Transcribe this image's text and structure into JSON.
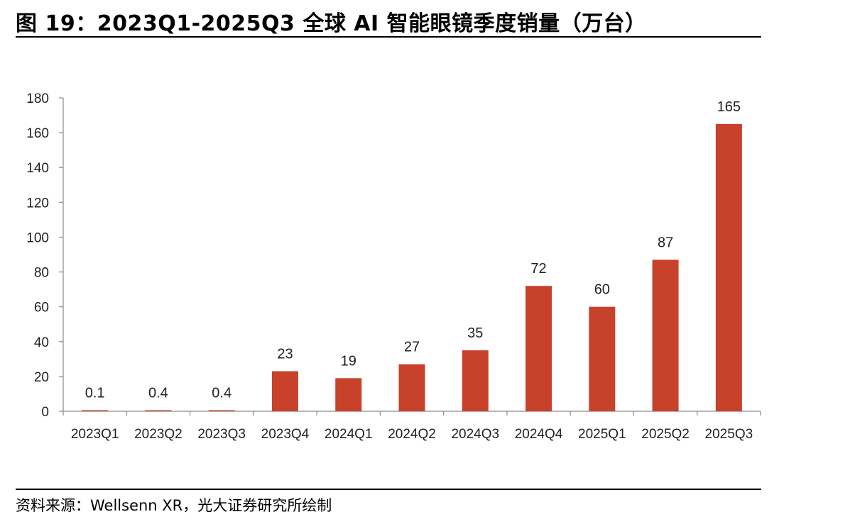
{
  "figure": {
    "title": "图 19：2023Q1-2025Q3 全球 AI 智能眼镜季度销量（万台）",
    "source": "资料来源：Wellsenn XR，光大证券研究所绘制"
  },
  "chart_data": {
    "type": "bar",
    "categories": [
      "2023Q1",
      "2023Q2",
      "2023Q3",
      "2023Q4",
      "2024Q1",
      "2024Q2",
      "2024Q3",
      "2024Q4",
      "2025Q1",
      "2025Q2",
      "2025Q3"
    ],
    "values": [
      0.1,
      0.4,
      0.4,
      23,
      19,
      27,
      35,
      72,
      60,
      87,
      165
    ],
    "data_labels": [
      "0.1",
      "0.4",
      "0.4",
      "23",
      "19",
      "27",
      "35",
      "72",
      "60",
      "87",
      "165"
    ],
    "y_ticks": [
      "0",
      "20",
      "40",
      "60",
      "80",
      "100",
      "120",
      "140",
      "160",
      "180"
    ],
    "ylim": [
      0,
      180
    ],
    "grid": false,
    "legend": "none",
    "bar_color": "#c8412b",
    "title": "",
    "xlabel": "",
    "ylabel": ""
  }
}
